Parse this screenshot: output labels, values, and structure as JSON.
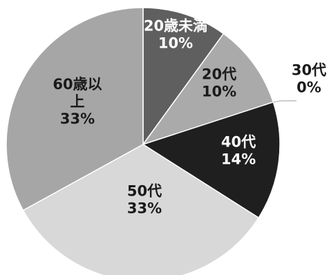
{
  "chart_data": {
    "type": "pie",
    "title": "",
    "categories": [
      "20歳未満",
      "20代",
      "30代",
      "40代",
      "50代",
      "60歳以上"
    ],
    "values": [
      10,
      10,
      0,
      14,
      33,
      33
    ],
    "value_labels": [
      "10%",
      "10%",
      "0%",
      "14%",
      "33%",
      "33%"
    ],
    "label_lines": [
      [
        "20歳未満"
      ],
      [
        "20代"
      ],
      [
        "30代"
      ],
      [
        "40代"
      ],
      [
        "50代"
      ],
      [
        "60歳以",
        "上"
      ]
    ],
    "colors": [
      "#5f5f5f",
      "#aaaaaa",
      "#bdbdbd",
      "#1f1f1f",
      "#d8d8d8",
      "#a6a6a6"
    ],
    "label_colors": [
      "#ffffff",
      "#1a1a1a",
      "#1a1a1a",
      "#ffffff",
      "#1a1a1a",
      "#1a1a1a"
    ],
    "start_angle": "12 o'clock",
    "direction": "clockwise",
    "legend": "none"
  }
}
